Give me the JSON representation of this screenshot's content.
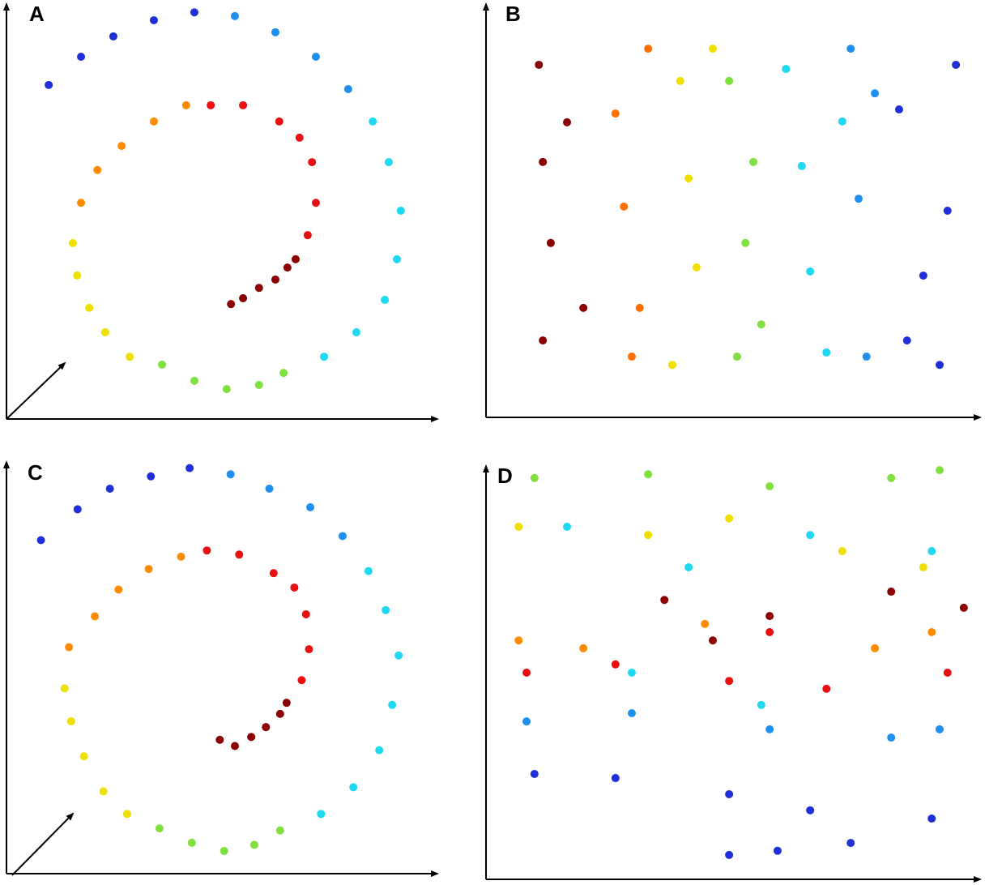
{
  "chart_data": [
    {
      "type": "scatter",
      "title": "A",
      "xlim": [
        0,
        100
      ],
      "ylim": [
        0,
        100
      ],
      "series": [
        {
          "color": "#8b0000",
          "x": [
            52.1,
            54.9,
            58.6,
            62.4,
            65.2,
            67.1
          ],
          "y": [
            27.7,
            29.1,
            31.6,
            33.6,
            36.5,
            38.5
          ]
        },
        {
          "color": "#e81010",
          "x": [
            69.9,
            71.8,
            70.9,
            68.0,
            63.3,
            54.9,
            47.4
          ],
          "y": [
            44.3,
            52.1,
            61.9,
            67.8,
            71.7,
            75.6,
            75.6
          ]
        },
        {
          "color": "#ff8c00",
          "x": [
            41.7,
            34.2,
            26.7,
            21.1,
            17.3
          ],
          "y": [
            75.6,
            71.7,
            65.8,
            60.0,
            52.1
          ]
        },
        {
          "color": "#f0e000",
          "x": [
            15.4,
            16.4,
            19.2,
            22.9,
            28.6
          ],
          "y": [
            42.4,
            34.6,
            26.8,
            20.9,
            15.0
          ]
        },
        {
          "color": "#80e040",
          "x": [
            36.1,
            43.6,
            51.1,
            58.6,
            64.3
          ],
          "y": [
            13.1,
            9.2,
            7.2,
            8.2,
            11.1
          ]
        },
        {
          "color": "#20d8f0",
          "x": [
            73.7,
            81.2,
            87.8,
            90.6,
            91.5,
            88.7,
            85.0
          ],
          "y": [
            15.0,
            20.9,
            28.7,
            38.5,
            50.2,
            61.9,
            71.7
          ]
        },
        {
          "color": "#2090f0",
          "x": [
            79.3,
            71.8,
            62.4,
            53.0
          ],
          "y": [
            79.5,
            87.3,
            93.2,
            97.1
          ]
        },
        {
          "color": "#2030d8",
          "x": [
            43.6,
            34.2,
            24.8,
            17.3,
            9.8
          ],
          "y": [
            98.0,
            96.1,
            92.2,
            87.3,
            80.5
          ]
        }
      ]
    },
    {
      "type": "scatter",
      "title": "B",
      "xlim": [
        0,
        100
      ],
      "ylim": [
        0,
        100
      ],
      "series": [
        {
          "color": "#8b0000",
          "x": [
            10.7,
            11.5,
            13.1,
            11.5,
            16.4,
            19.7
          ],
          "y": [
            85.3,
            61.8,
            42.2,
            18.6,
            71.4,
            26.5
          ]
        },
        {
          "color": "#ff7000",
          "x": [
            26.2,
            27.9,
            31.1,
            32.8,
            29.5
          ],
          "y": [
            73.5,
            51.0,
            26.5,
            89.2,
            14.7
          ]
        },
        {
          "color": "#f0e000",
          "x": [
            39.3,
            41.0,
            42.6,
            37.7,
            45.9
          ],
          "y": [
            81.4,
            57.8,
            36.3,
            12.7,
            89.2
          ]
        },
        {
          "color": "#80e040",
          "x": [
            49.2,
            52.5,
            54.1,
            55.7,
            50.8
          ],
          "y": [
            81.4,
            42.2,
            61.8,
            22.5,
            14.7
          ]
        },
        {
          "color": "#20d8f0",
          "x": [
            60.7,
            63.9,
            65.6,
            68.9,
            72.1
          ],
          "y": [
            84.3,
            60.8,
            35.3,
            15.7,
            71.6
          ]
        },
        {
          "color": "#2090f0",
          "x": [
            75.4,
            78.7,
            77.0,
            73.8
          ],
          "y": [
            52.9,
            78.4,
            14.7,
            89.2
          ]
        },
        {
          "color": "#2030d8",
          "x": [
            83.6,
            88.5,
            93.4,
            91.8,
            85.2,
            95.1
          ],
          "y": [
            74.5,
            34.3,
            50.0,
            12.7,
            18.6,
            85.3
          ]
        }
      ]
    },
    {
      "type": "scatter",
      "title": "C",
      "xlim": [
        0,
        100
      ],
      "ylim": [
        0,
        100
      ],
      "series": [
        {
          "color": "#8b0000",
          "x": [
            49.5,
            53.0,
            56.8,
            60.2,
            63.5,
            65.0
          ],
          "y": [
            32.5,
            31.0,
            33.2,
            35.6,
            38.8,
            41.5
          ]
        },
        {
          "color": "#e81010",
          "x": [
            68.5,
            70.2,
            69.5,
            66.8,
            62.0,
            54.0,
            46.5
          ],
          "y": [
            47.0,
            54.5,
            63.0,
            69.5,
            73.0,
            77.5,
            78.5
          ]
        },
        {
          "color": "#ff8c00",
          "x": [
            40.5,
            33.0,
            26.0,
            20.5,
            14.5
          ],
          "y": [
            77.0,
            74.0,
            69.0,
            62.5,
            55.0
          ]
        },
        {
          "color": "#f0e000",
          "x": [
            13.5,
            15.0,
            18.0,
            22.5,
            28.0
          ],
          "y": [
            45.0,
            37.0,
            28.5,
            20.0,
            14.5
          ]
        },
        {
          "color": "#80e040",
          "x": [
            35.5,
            43.0,
            50.5,
            57.5,
            63.5
          ],
          "y": [
            11.0,
            7.5,
            5.5,
            7.0,
            10.5
          ]
        },
        {
          "color": "#20d8f0",
          "x": [
            73.0,
            80.5,
            86.5,
            89.5,
            91.0,
            88.0,
            84.0
          ],
          "y": [
            14.5,
            21.0,
            30.0,
            41.0,
            53.0,
            64.0,
            73.5
          ]
        },
        {
          "color": "#2090f0",
          "x": [
            78.0,
            70.5,
            61.0,
            52.0
          ],
          "y": [
            82.0,
            89.0,
            93.5,
            97.0
          ]
        },
        {
          "color": "#2030d8",
          "x": [
            42.5,
            33.5,
            24.0,
            16.5,
            8.0
          ],
          "y": [
            98.5,
            96.5,
            93.5,
            88.5,
            81.0
          ]
        }
      ]
    },
    {
      "type": "scatter",
      "title": "D",
      "xlim": [
        0,
        100
      ],
      "ylim": [
        0,
        100
      ],
      "series": [
        {
          "color": "#80e040",
          "x": [
            9.8,
            32.8,
            57.4,
            82.0,
            91.8
          ],
          "y": [
            97.1,
            98.0,
            95.1,
            97.1,
            99.0
          ]
        },
        {
          "color": "#f0e000",
          "x": [
            6.6,
            32.8,
            49.2,
            72.1,
            88.5
          ],
          "y": [
            85.3,
            83.3,
            87.3,
            79.4,
            75.5
          ]
        },
        {
          "color": "#20d8f0",
          "x": [
            16.4,
            41.0,
            65.6,
            90.2,
            55.7,
            29.5
          ],
          "y": [
            85.3,
            75.5,
            83.3,
            79.4,
            42.2,
            50.0
          ]
        },
        {
          "color": "#8b0000",
          "x": [
            36.1,
            57.4,
            82.0,
            96.7,
            45.9
          ],
          "y": [
            67.6,
            63.7,
            69.6,
            65.7,
            57.8
          ]
        },
        {
          "color": "#e81010",
          "x": [
            8.2,
            26.2,
            49.2,
            68.9,
            93.4,
            57.4
          ],
          "y": [
            50.0,
            52.0,
            48.0,
            46.1,
            50.0,
            59.8
          ]
        },
        {
          "color": "#ff8c00",
          "x": [
            6.6,
            19.7,
            44.3,
            78.7,
            90.2
          ],
          "y": [
            57.8,
            55.9,
            61.8,
            55.9,
            59.8
          ]
        },
        {
          "color": "#2090f0",
          "x": [
            8.2,
            29.5,
            57.4,
            82.0,
            91.8
          ],
          "y": [
            38.2,
            40.2,
            36.3,
            34.3,
            36.3
          ]
        },
        {
          "color": "#2030d8",
          "x": [
            9.8,
            26.2,
            49.2,
            65.6,
            90.2,
            73.8,
            49.2,
            59.0
          ],
          "y": [
            25.5,
            24.5,
            20.6,
            16.7,
            14.7,
            8.8,
            5.9,
            6.9
          ]
        }
      ]
    }
  ]
}
